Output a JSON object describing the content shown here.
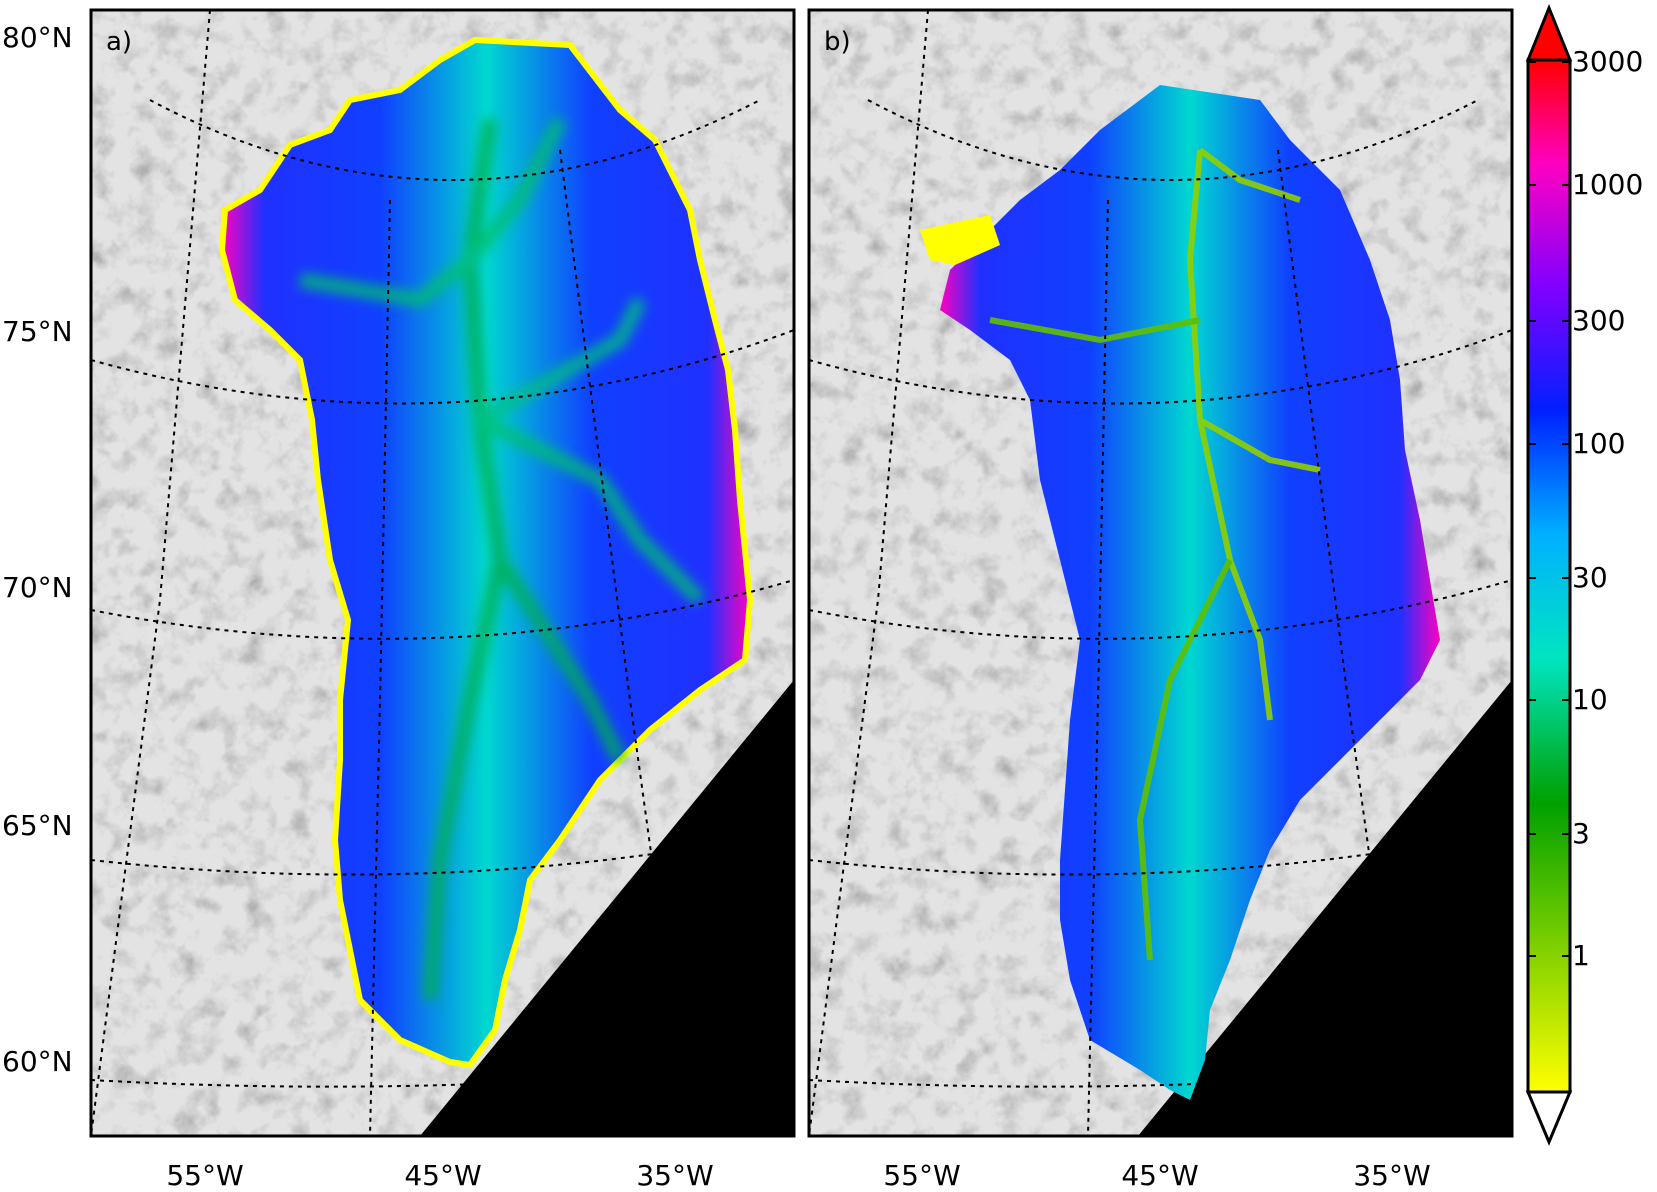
{
  "figure": {
    "panels": [
      {
        "label": "a)"
      },
      {
        "label": "b)"
      }
    ],
    "latitude_labels": [
      "80°N",
      "75°N",
      "70°N",
      "65°N",
      "60°N"
    ],
    "longitude_labels": [
      "55°W",
      "45°W",
      "35°W"
    ]
  },
  "colorbar": {
    "scale": "log",
    "tick_labels": [
      "3000",
      "1000",
      "300",
      "100",
      "30",
      "10",
      "3",
      "1"
    ],
    "tick_values": [
      3000,
      1000,
      300,
      100,
      30,
      10,
      3,
      1
    ],
    "range": [
      0.1,
      3000
    ],
    "extend": "both",
    "colors": [
      "#ffff00",
      "#7fd000",
      "#00a000",
      "#00e5c0",
      "#00b0ff",
      "#0020ff",
      "#8000ff",
      "#ff00c0",
      "#ff0000"
    ],
    "over_color": "#ff0000",
    "under_color": "#ffffff"
  },
  "map_colors": {
    "ocean_background": "#6e6e6e",
    "no_data": "#000000",
    "graticule": "#000000"
  }
}
